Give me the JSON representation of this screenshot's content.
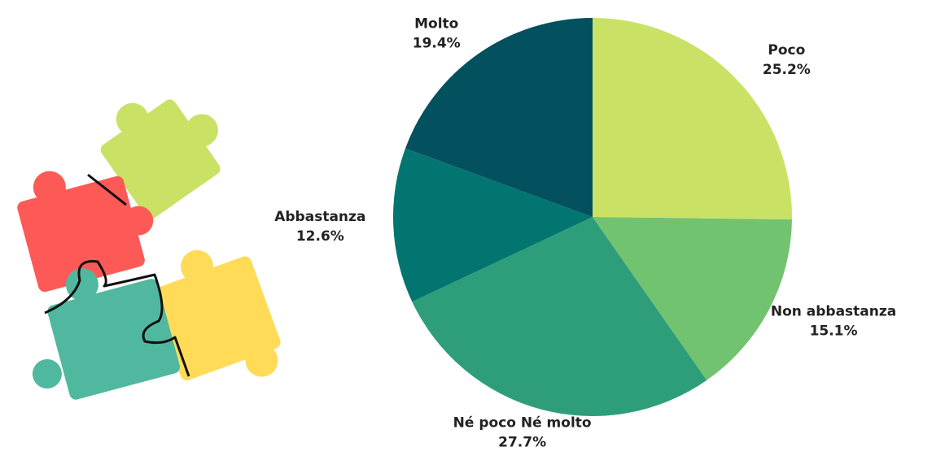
{
  "chart_data": {
    "type": "pie",
    "categories": [
      "Poco",
      "Non abbastanza",
      "Né poco Né molto",
      "Abbastanza",
      "Molto"
    ],
    "values": [
      25.2,
      15.1,
      27.7,
      12.6,
      19.4
    ],
    "value_labels": [
      "25.2%",
      "15.1%",
      "27.7%",
      "12.6%",
      "19.4%"
    ],
    "colors": [
      "#c9e265",
      "#72c36f",
      "#2e9e7a",
      "#027571",
      "#03505e"
    ]
  }
}
